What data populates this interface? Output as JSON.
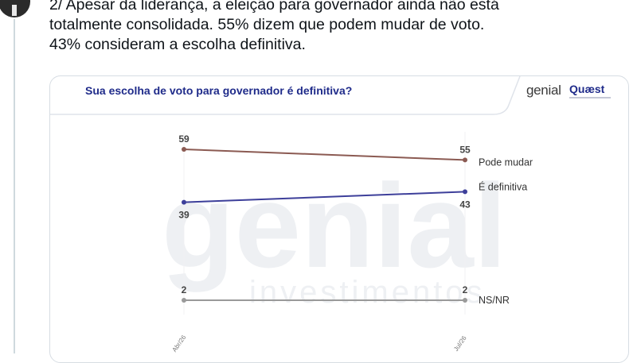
{
  "tweet": {
    "lines": [
      "2/ Apesar da liderança, a eleição para governador ainda não está",
      "totalmente consolidada. 55% dizem que podem mudar de voto.",
      "43% consideram a escolha definitiva."
    ]
  },
  "card": {
    "title": "Sua escolha de voto para governador é definitiva?",
    "logo_genial": "genial",
    "logo_quaest": "Quæst",
    "watermark_top": "genial",
    "watermark_bottom": "investimentos"
  },
  "chart_data": {
    "type": "line",
    "x": [
      "Abr/26",
      "Jul/26"
    ],
    "series": [
      {
        "name": "Pode mudar",
        "values": [
          59,
          55
        ],
        "color": "#8b5a52"
      },
      {
        "name": "É definitiva",
        "values": [
          39,
          43
        ],
        "color": "#3d3f9a"
      },
      {
        "name": "NS/NR",
        "values": [
          2,
          2
        ],
        "color": "#9a9a9a"
      }
    ],
    "grid": false
  }
}
